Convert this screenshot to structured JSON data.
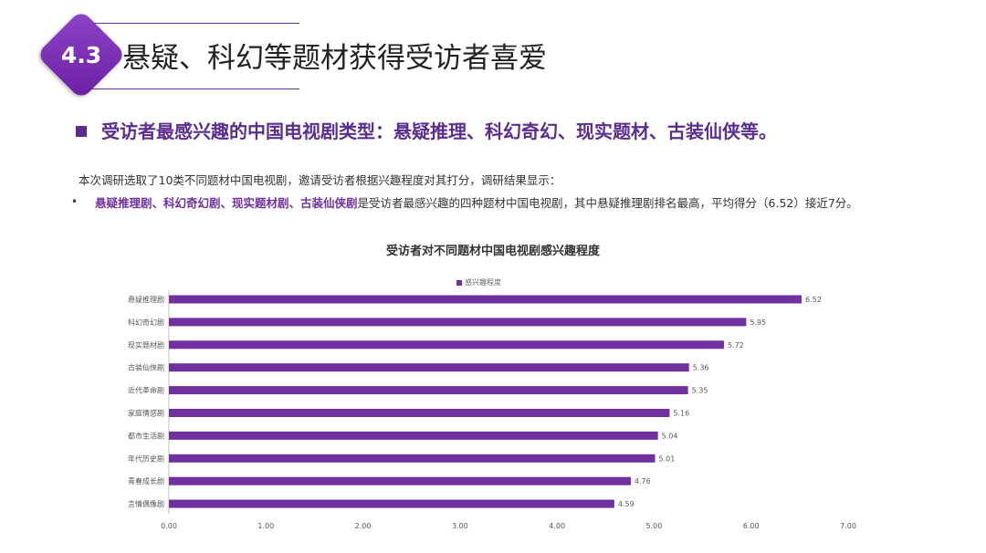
{
  "header": {
    "section_number": "4.3",
    "title": "悬疑、科幻等题材获得受访者喜爱"
  },
  "subtitle": "受访者最感兴趣的中国电视剧类型：悬疑推理、科幻奇幻、现实题材、古装仙侠等。",
  "intro": "本次调研选取了10类不同题材中国电视剧，邀请受访者根据兴趣程度对其打分，调研结果显示：",
  "bullet": {
    "highlight": "悬疑推理剧、科幻奇幻剧、现实题材剧、古装仙侠剧",
    "rest": "是受访者最感兴趣的四种题材中国电视剧，其中悬疑推理剧排名最高，平均得分（6.52）接近7分。"
  },
  "colors": {
    "accent": "#7030a0",
    "subtitle": "#5b2d8e"
  },
  "chart_data": {
    "type": "bar",
    "orientation": "horizontal",
    "title": "受访者对不同题材中国电视剧感兴趣程度",
    "legend_position": "top",
    "grid": false,
    "categories": [
      "悬疑推理剧",
      "科幻奇幻剧",
      "现实题材剧",
      "古装仙侠剧",
      "近代革命剧",
      "家庭情感剧",
      "都市生活剧",
      "年代历史剧",
      "青春成长剧",
      "言情偶像剧"
    ],
    "series": [
      {
        "name": "感兴趣程度",
        "values": [
          6.52,
          5.95,
          5.72,
          5.36,
          5.35,
          5.16,
          5.04,
          5.01,
          4.76,
          4.59
        ]
      }
    ],
    "value_labels": [
      "6.52",
      "5.95",
      "5.72",
      "5.36",
      "5.35",
      "5.16",
      "5.04",
      "5.01",
      "4.76",
      "4.59"
    ],
    "xlim": [
      0,
      7
    ],
    "xticks": [
      "0.00",
      "1.00",
      "2.00",
      "3.00",
      "4.00",
      "5.00",
      "6.00",
      "7.00"
    ]
  }
}
